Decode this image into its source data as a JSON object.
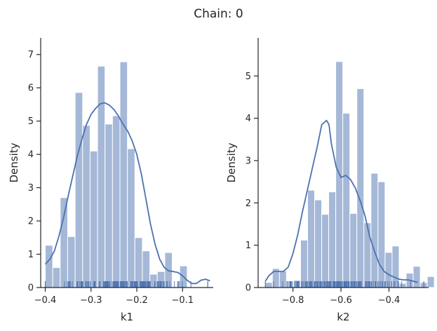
{
  "figure_title": "Chain: 0",
  "colors": {
    "bar": "#4c72b0",
    "bar_opacity": 0.5,
    "kde": "#4c72b0",
    "rug": "#4c72b0",
    "axis": "#262626"
  },
  "chart_data": [
    {
      "type": "bar",
      "subtype": "histogram+kde+rug",
      "xlabel": "k1",
      "ylabel": "Density",
      "xlim": [
        -0.41,
        -0.033
      ],
      "ylim": [
        0,
        7.5
      ],
      "xticks": [
        -0.4,
        -0.3,
        -0.2,
        -0.1
      ],
      "xtick_labels": [
        "−0.4",
        "−0.3",
        "−0.2",
        "−0.1"
      ],
      "yticks": [
        0,
        1,
        2,
        3,
        4,
        5,
        6,
        7
      ],
      "ytick_labels": [
        "0",
        "1",
        "2",
        "3",
        "4",
        "5",
        "6",
        "7"
      ],
      "bins": {
        "start": -0.4,
        "width": 0.01632
      },
      "values": [
        1.27,
        0.6,
        2.7,
        1.53,
        5.86,
        4.87,
        4.1,
        6.65,
        4.91,
        5.16,
        6.78,
        4.17,
        1.5,
        1.1,
        0.4,
        0.48,
        1.05,
        0.0,
        0.65
      ],
      "kde": {
        "x": [
          -0.4,
          -0.39,
          -0.38,
          -0.37,
          -0.36,
          -0.35,
          -0.34,
          -0.33,
          -0.32,
          -0.31,
          -0.3,
          -0.29,
          -0.28,
          -0.27,
          -0.26,
          -0.25,
          -0.24,
          -0.23,
          -0.22,
          -0.21,
          -0.2,
          -0.19,
          -0.18,
          -0.17,
          -0.16,
          -0.15,
          -0.14,
          -0.13,
          -0.12,
          -0.11,
          -0.1,
          -0.09,
          -0.08,
          -0.07,
          -0.06,
          -0.05,
          -0.04
        ],
        "y": [
          0.7,
          0.85,
          1.1,
          1.55,
          2.1,
          2.75,
          3.35,
          3.95,
          4.45,
          4.9,
          5.2,
          5.38,
          5.52,
          5.55,
          5.48,
          5.35,
          5.15,
          4.9,
          4.7,
          4.4,
          4.0,
          3.4,
          2.65,
          1.9,
          1.3,
          0.85,
          0.6,
          0.5,
          0.48,
          0.45,
          0.35,
          0.22,
          0.12,
          0.12,
          0.22,
          0.25,
          0.2
        ]
      },
      "rug_range": [
        -0.4,
        -0.045
      ]
    },
    {
      "type": "bar",
      "subtype": "histogram+kde+rug",
      "xlabel": "k2",
      "ylabel": "Density",
      "xlim": [
        -0.945,
        -0.235
      ],
      "ylim": [
        0,
        5.9
      ],
      "xticks": [
        -0.8,
        -0.6,
        -0.4
      ],
      "xtick_labels": [
        "−0.8",
        "−0.6",
        "−0.4"
      ],
      "yticks": [
        0,
        1,
        2,
        3,
        4,
        5
      ],
      "ytick_labels": [
        "0",
        "1",
        "2",
        "3",
        "4",
        "5"
      ],
      "bins": {
        "start": -0.915,
        "width": 0.02933
      },
      "values": [
        0.12,
        0.45,
        0.39,
        0.16,
        0.17,
        1.12,
        2.3,
        2.07,
        1.73,
        2.26,
        5.34,
        4.12,
        1.75,
        4.7,
        1.53,
        2.7,
        2.5,
        0.83,
        0.98,
        0.1,
        0.34,
        0.5,
        0.12,
        0.26
      ],
      "kde": {
        "x": [
          -0.915,
          -0.9,
          -0.88,
          -0.86,
          -0.84,
          -0.82,
          -0.8,
          -0.78,
          -0.76,
          -0.74,
          -0.72,
          -0.7,
          -0.68,
          -0.66,
          -0.65,
          -0.64,
          -0.62,
          -0.6,
          -0.58,
          -0.56,
          -0.54,
          -0.52,
          -0.5,
          -0.48,
          -0.46,
          -0.44,
          -0.42,
          -0.4,
          -0.38,
          -0.36,
          -0.34,
          -0.32,
          -0.3,
          -0.28
        ],
        "y": [
          0.15,
          0.28,
          0.38,
          0.38,
          0.38,
          0.48,
          0.8,
          1.25,
          1.8,
          2.3,
          2.8,
          3.3,
          3.85,
          3.95,
          3.85,
          3.4,
          2.85,
          2.6,
          2.65,
          2.55,
          2.35,
          2.05,
          1.7,
          1.2,
          0.85,
          0.55,
          0.38,
          0.3,
          0.25,
          0.2,
          0.18,
          0.18,
          0.15,
          0.12
        ]
      },
      "rug_range": [
        -0.915,
        -0.255
      ]
    }
  ]
}
